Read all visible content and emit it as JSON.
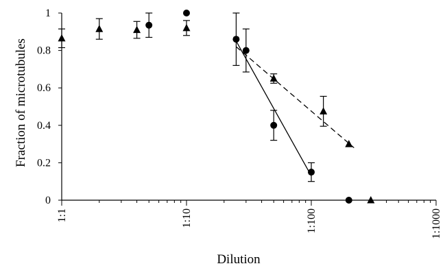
{
  "chart_data": {
    "type": "scatter",
    "xlabel": "Dilution",
    "ylabel": "Fraction of microtubules",
    "x_scale": "log",
    "xlim": [
      1,
      1000
    ],
    "ylim": [
      0,
      1
    ],
    "x_ticks": [
      {
        "value": 1,
        "label": "1:1"
      },
      {
        "value": 10,
        "label": "1:10"
      },
      {
        "value": 100,
        "label": "1:100"
      },
      {
        "value": 1000,
        "label": "1:1000"
      }
    ],
    "y_ticks": [
      {
        "value": 0,
        "label": "0"
      },
      {
        "value": 0.2,
        "label": "0.2"
      },
      {
        "value": 0.4,
        "label": "0.4"
      },
      {
        "value": 0.6,
        "label": "0.6"
      },
      {
        "value": 0.8,
        "label": "0.8"
      },
      {
        "value": 1,
        "label": "1"
      }
    ],
    "grid": false,
    "series": [
      {
        "marker": "circle",
        "points": [
          {
            "x": 5,
            "y": 0.935,
            "err": 0.065
          },
          {
            "x": 10,
            "y": 1.0,
            "err": 0
          },
          {
            "x": 25,
            "y": 0.86,
            "err": 0.14
          },
          {
            "x": 30,
            "y": 0.8,
            "err": 0.115
          },
          {
            "x": 50,
            "y": 0.4,
            "err": 0.08
          },
          {
            "x": 100,
            "y": 0.15,
            "err": 0.05
          },
          {
            "x": 200,
            "y": 0.0,
            "err": 0
          }
        ],
        "fit": {
          "style": "solid",
          "from": {
            "x": 25,
            "y": 0.85
          },
          "to": {
            "x": 100,
            "y": 0.13
          }
        }
      },
      {
        "marker": "triangle",
        "points": [
          {
            "x": 1,
            "y": 0.865,
            "err": 0.05
          },
          {
            "x": 2,
            "y": 0.915,
            "err": 0.055
          },
          {
            "x": 4,
            "y": 0.91,
            "err": 0.045
          },
          {
            "x": 10,
            "y": 0.92,
            "err": 0.04
          },
          {
            "x": 50,
            "y": 0.65,
            "err": 0.025
          },
          {
            "x": 125,
            "y": 0.475,
            "err": 0.08
          },
          {
            "x": 200,
            "y": 0.3,
            "err": 0
          },
          {
            "x": 300,
            "y": 0.0,
            "err": 0
          }
        ],
        "fit": {
          "style": "dashed",
          "from": {
            "x": 25,
            "y": 0.82
          },
          "to": {
            "x": 220,
            "y": 0.28
          }
        }
      }
    ]
  }
}
